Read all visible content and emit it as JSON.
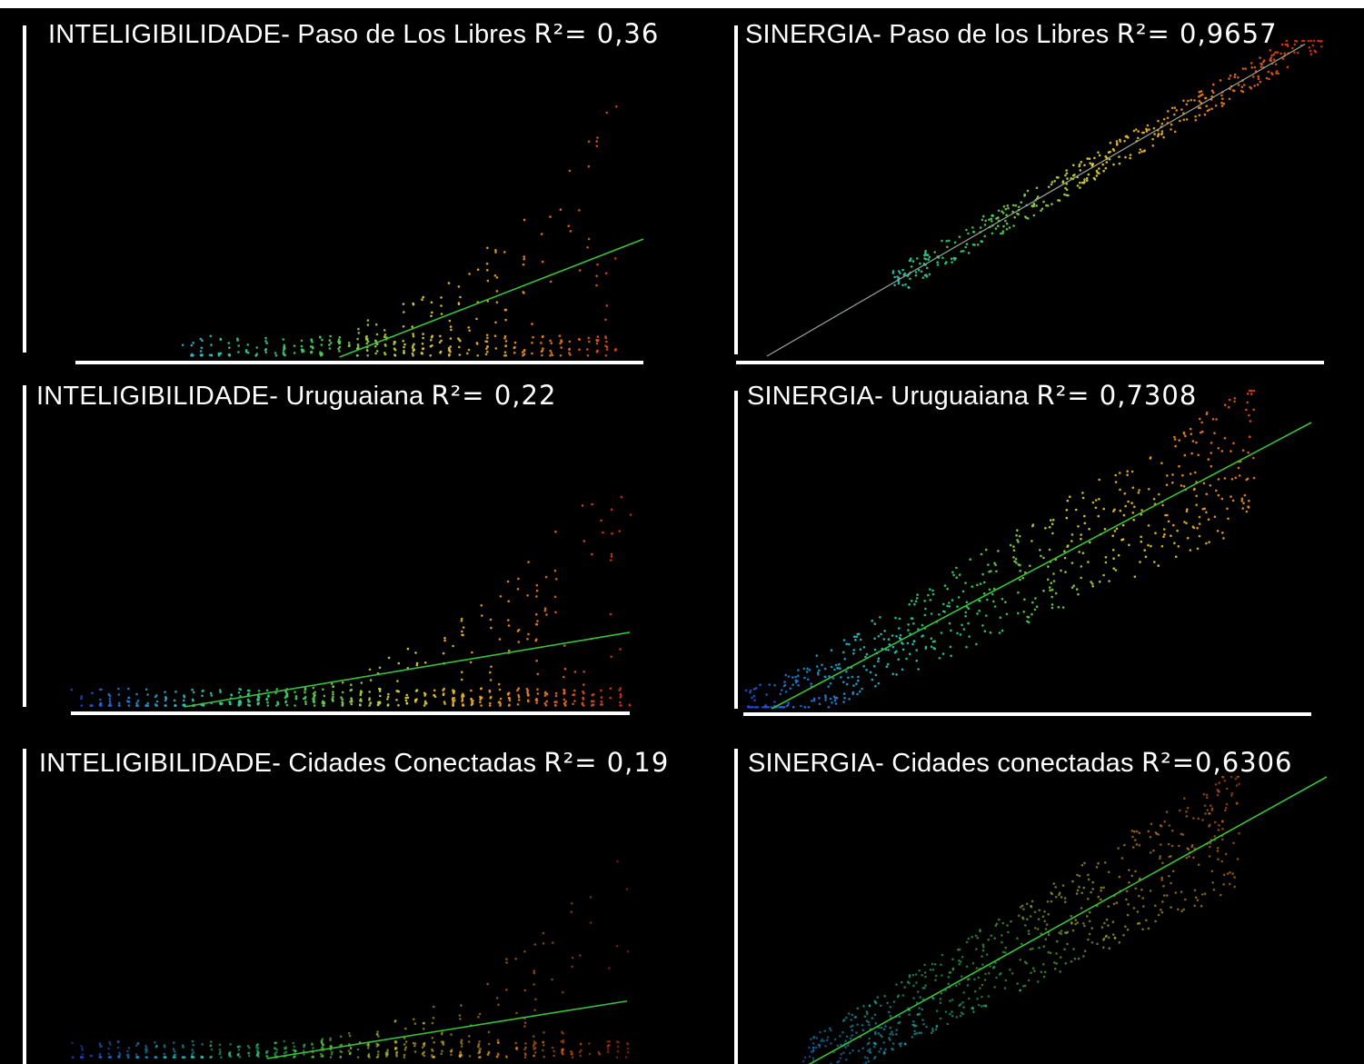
{
  "chart_data": [
    {
      "type": "scatter",
      "title": "INTELIGIBILIDADE- Paso de Los Libres R²= 0,36",
      "title_main": "INTELIGIBILIDADE- Paso de Los Libres ",
      "title_r2": "R²= 0,36",
      "r_squared": 0.36,
      "trendline": {
        "x": [
          0.45,
          1.0
        ],
        "y": [
          0.0,
          0.39
        ]
      },
      "points": {
        "n": 380,
        "x_range": [
          0.15,
          0.95
        ],
        "y_max": 0.95,
        "spread": "banded",
        "seed": 11
      },
      "colormap": [
        "#1f3fd8",
        "#22c3c8",
        "#3fcf5a",
        "#e4d53a",
        "#f08a1e",
        "#cf2a12"
      ],
      "grid": false,
      "axes_labels": false
    },
    {
      "type": "scatter",
      "title": "SINERGIA- Paso de los Libres R²= 0,9657",
      "title_main": "SINERGIA- Paso de los Libres ",
      "title_r2": "R²= 0,9657",
      "r_squared": 0.9657,
      "trendline": {
        "x": [
          0.03,
          0.97
        ],
        "y": [
          0.0,
          0.99
        ]
      },
      "points": {
        "n": 420,
        "x_range": [
          0.25,
          1.0
        ],
        "y_max": 1.0,
        "spread": "tight",
        "seed": 23
      },
      "colormap": [
        "#1f3fd8",
        "#22c3c8",
        "#3fcf5a",
        "#e4d53a",
        "#f08a1e",
        "#cf2a12"
      ],
      "grid": false,
      "axes_labels": false
    },
    {
      "type": "scatter",
      "title": "INTELIGIBILIDADE- Uruguaiana R²= 0,22",
      "title_main": "INTELIGIBILIDADE- Uruguaiana ",
      "title_r2": "R²= 0,22",
      "r_squared": 0.22,
      "trendline": {
        "x": [
          0.2,
          1.0
        ],
        "y": [
          0.0,
          0.28
        ]
      },
      "points": {
        "n": 560,
        "x_range": [
          0.0,
          1.0
        ],
        "y_max": 0.95,
        "spread": "banded",
        "seed": 37
      },
      "colormap": [
        "#1f3fd8",
        "#22c3c8",
        "#3fcf5a",
        "#e4d53a",
        "#f08a1e",
        "#cf2a12"
      ],
      "grid": false,
      "axes_labels": false
    },
    {
      "type": "scatter",
      "title": "SINERGIA- Uruguaiana R²= 0,7308",
      "title_main": "SINERGIA- Uruguaiana ",
      "title_r2": "R²= 0,7308",
      "r_squared": 0.7308,
      "trendline": {
        "x": [
          0.05,
          1.0
        ],
        "y": [
          0.0,
          0.9
        ]
      },
      "points": {
        "n": 620,
        "x_range": [
          0.0,
          0.9
        ],
        "y_max": 1.0,
        "spread": "medium",
        "seed": 41
      },
      "colormap": [
        "#1f3fd8",
        "#22c3c8",
        "#3fcf5a",
        "#e4d53a",
        "#f08a1e",
        "#cf2a12"
      ],
      "grid": false,
      "axes_labels": false
    },
    {
      "type": "scatter",
      "title": "INTELIGIBILIDADE- Cidades Conectadas R²= 0,19",
      "title_main": "INTELIGIBILIDADE- Cidades Conectadas ",
      "title_r2": "R²= 0,19",
      "r_squared": 0.19,
      "trendline": {
        "x": [
          0.35,
          1.0
        ],
        "y": [
          0.0,
          0.23
        ]
      },
      "points": {
        "n": 520,
        "x_range": [
          0.0,
          1.0
        ],
        "y_max": 0.8,
        "spread": "faint",
        "seed": 53
      },
      "colormap": [
        "#1f3fd8",
        "#22c3c8",
        "#3fcf5a",
        "#e4d53a",
        "#f08a1e",
        "#cf2a12"
      ],
      "grid": false,
      "axes_labels": false
    },
    {
      "type": "scatter",
      "title": "SINERGIA- Cidades conectadas R²=0,6306",
      "title_main": "SINERGIA- Cidades conectadas ",
      "title_r2": "R²=0,6306",
      "r_squared": 0.6306,
      "trendline": {
        "x": [
          0.1,
          1.0
        ],
        "y": [
          0.0,
          1.0
        ]
      },
      "points": {
        "n": 700,
        "x_range": [
          0.1,
          0.85
        ],
        "y_max": 1.0,
        "spread": "medium-faint",
        "seed": 67
      },
      "colormap": [
        "#1f3fd8",
        "#22c3c8",
        "#3fcf5a",
        "#e4d53a",
        "#f08a1e",
        "#cf2a12"
      ],
      "grid": false,
      "axes_labels": false
    }
  ]
}
